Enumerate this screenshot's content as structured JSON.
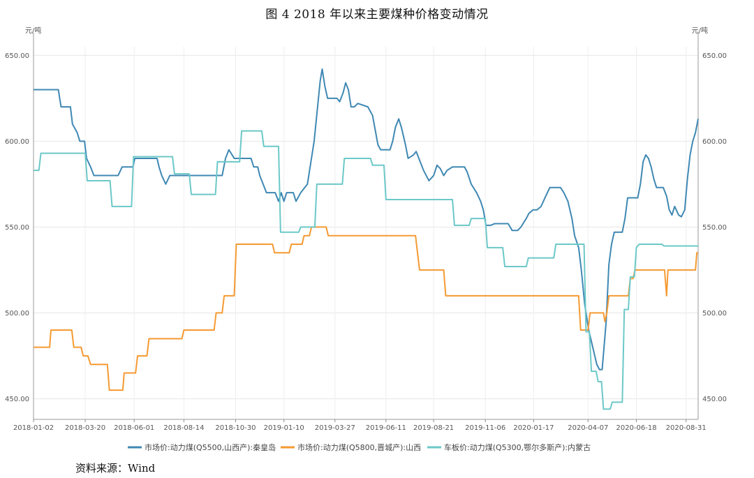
{
  "figure": {
    "title": "图 4   2018 年以来主要煤种价格变动情况",
    "source": "资料来源：Wind"
  },
  "chart_data": {
    "type": "line",
    "yunit_left": "元/吨",
    "yunit_right": "元/吨",
    "ylim": [
      438,
      655
    ],
    "yticks": [
      "650.00",
      "600.00",
      "550.00",
      "500.00",
      "450.00"
    ],
    "ytick_values": [
      650,
      600,
      550,
      500,
      450
    ],
    "xlim": [
      "2018-01-02",
      "2020-09-18"
    ],
    "xticks": [
      "2018-01-02",
      "2018-03-20",
      "2018-06-01",
      "2018-08-14",
      "2018-10-30",
      "2019-01-10",
      "2019-03-27",
      "2019-06-11",
      "2019-08-21",
      "2019-11-06",
      "2020-01-17",
      "2020-04-07",
      "2020-06-18",
      "2020-08-31"
    ],
    "grid": true,
    "legend_position": "bottom",
    "colors": {
      "qhd": "#3f88b3",
      "jc": "#f59a32",
      "nmg": "#6cc8c8"
    },
    "series": [
      {
        "key": "qhd",
        "name": "市场价:动力煤(Q5500,山西产):秦皇岛",
        "points": [
          [
            "2018-01-02",
            630
          ],
          [
            "2018-02-08",
            630
          ],
          [
            "2018-02-12",
            620
          ],
          [
            "2018-02-26",
            620
          ],
          [
            "2018-03-01",
            610
          ],
          [
            "2018-03-08",
            605
          ],
          [
            "2018-03-12",
            600
          ],
          [
            "2018-03-19",
            600
          ],
          [
            "2018-03-22",
            590
          ],
          [
            "2018-03-28",
            585
          ],
          [
            "2018-04-02",
            580
          ],
          [
            "2018-05-08",
            580
          ],
          [
            "2018-05-14",
            585
          ],
          [
            "2018-05-30",
            585
          ],
          [
            "2018-06-02",
            590
          ],
          [
            "2018-07-05",
            590
          ],
          [
            "2018-07-08",
            585
          ],
          [
            "2018-07-12",
            580
          ],
          [
            "2018-07-18",
            575
          ],
          [
            "2018-07-24",
            580
          ],
          [
            "2018-10-10",
            580
          ],
          [
            "2018-10-15",
            590
          ],
          [
            "2018-10-20",
            595
          ],
          [
            "2018-10-28",
            590
          ],
          [
            "2018-11-22",
            590
          ],
          [
            "2018-11-26",
            585
          ],
          [
            "2018-12-02",
            585
          ],
          [
            "2018-12-05",
            580
          ],
          [
            "2018-12-10",
            575
          ],
          [
            "2018-12-15",
            570
          ],
          [
            "2018-12-28",
            570
          ],
          [
            "2019-01-02",
            565
          ],
          [
            "2019-01-06",
            570
          ],
          [
            "2019-01-10",
            565
          ],
          [
            "2019-01-14",
            570
          ],
          [
            "2019-01-24",
            570
          ],
          [
            "2019-01-28",
            565
          ],
          [
            "2019-02-04",
            570
          ],
          [
            "2019-02-14",
            575
          ],
          [
            "2019-02-24",
            600
          ],
          [
            "2019-03-05",
            635
          ],
          [
            "2019-03-08",
            642
          ],
          [
            "2019-03-12",
            632
          ],
          [
            "2019-03-16",
            625
          ],
          [
            "2019-03-30",
            625
          ],
          [
            "2019-04-03",
            623
          ],
          [
            "2019-04-08",
            628
          ],
          [
            "2019-04-12",
            634
          ],
          [
            "2019-04-16",
            630
          ],
          [
            "2019-04-20",
            620
          ],
          [
            "2019-04-25",
            620
          ],
          [
            "2019-04-30",
            622
          ],
          [
            "2019-05-15",
            620
          ],
          [
            "2019-05-22",
            615
          ],
          [
            "2019-05-30",
            598
          ],
          [
            "2019-06-03",
            595
          ],
          [
            "2019-06-17",
            595
          ],
          [
            "2019-06-21",
            600
          ],
          [
            "2019-06-25",
            608
          ],
          [
            "2019-06-30",
            613
          ],
          [
            "2019-07-04",
            608
          ],
          [
            "2019-07-10",
            598
          ],
          [
            "2019-07-14",
            590
          ],
          [
            "2019-07-22",
            592
          ],
          [
            "2019-07-26",
            594
          ],
          [
            "2019-07-30",
            590
          ],
          [
            "2019-08-06",
            583
          ],
          [
            "2019-08-14",
            577
          ],
          [
            "2019-08-21",
            580
          ],
          [
            "2019-08-26",
            586
          ],
          [
            "2019-08-31",
            584
          ],
          [
            "2019-09-05",
            580
          ],
          [
            "2019-09-10",
            583
          ],
          [
            "2019-09-18",
            585
          ],
          [
            "2019-10-06",
            585
          ],
          [
            "2019-10-10",
            582
          ],
          [
            "2019-10-16",
            575
          ],
          [
            "2019-10-24",
            570
          ],
          [
            "2019-10-30",
            565
          ],
          [
            "2019-11-03",
            560
          ],
          [
            "2019-11-07",
            551
          ],
          [
            "2019-11-14",
            551
          ],
          [
            "2019-11-20",
            552
          ],
          [
            "2019-12-10",
            552
          ],
          [
            "2019-12-16",
            548
          ],
          [
            "2019-12-24",
            548
          ],
          [
            "2019-12-29",
            550
          ],
          [
            "2020-01-06",
            555
          ],
          [
            "2020-01-10",
            558
          ],
          [
            "2020-01-16",
            560
          ],
          [
            "2020-01-22",
            560
          ],
          [
            "2020-01-28",
            562
          ],
          [
            "2020-02-04",
            568
          ],
          [
            "2020-02-10",
            573
          ],
          [
            "2020-02-26",
            573
          ],
          [
            "2020-03-02",
            570
          ],
          [
            "2020-03-08",
            565
          ],
          [
            "2020-03-14",
            555
          ],
          [
            "2020-03-18",
            545
          ],
          [
            "2020-03-24",
            538
          ],
          [
            "2020-03-28",
            525
          ],
          [
            "2020-04-02",
            505
          ],
          [
            "2020-04-08",
            490
          ],
          [
            "2020-04-14",
            480
          ],
          [
            "2020-04-20",
            470
          ],
          [
            "2020-04-24",
            467
          ],
          [
            "2020-04-28",
            467
          ],
          [
            "2020-05-04",
            495
          ],
          [
            "2020-05-08",
            528
          ],
          [
            "2020-05-12",
            540
          ],
          [
            "2020-05-16",
            547
          ],
          [
            "2020-05-28",
            547
          ],
          [
            "2020-06-01",
            555
          ],
          [
            "2020-06-05",
            567
          ],
          [
            "2020-06-20",
            567
          ],
          [
            "2020-06-24",
            575
          ],
          [
            "2020-06-28",
            588
          ],
          [
            "2020-07-02",
            592
          ],
          [
            "2020-07-06",
            590
          ],
          [
            "2020-07-10",
            585
          ],
          [
            "2020-07-14",
            578
          ],
          [
            "2020-07-18",
            573
          ],
          [
            "2020-07-28",
            573
          ],
          [
            "2020-08-02",
            568
          ],
          [
            "2020-08-06",
            560
          ],
          [
            "2020-08-10",
            557
          ],
          [
            "2020-08-14",
            562
          ],
          [
            "2020-08-20",
            557
          ],
          [
            "2020-08-24",
            556
          ],
          [
            "2020-08-29",
            560
          ],
          [
            "2020-09-02",
            578
          ],
          [
            "2020-09-06",
            592
          ],
          [
            "2020-09-10",
            600
          ],
          [
            "2020-09-14",
            605
          ],
          [
            "2020-09-18",
            613
          ]
        ]
      },
      {
        "key": "jc",
        "name": "市场价:动力煤(Q5800,晋城产):山西",
        "points": [
          [
            "2018-01-02",
            480
          ],
          [
            "2018-01-26",
            480
          ],
          [
            "2018-01-28",
            490
          ],
          [
            "2018-02-28",
            490
          ],
          [
            "2018-03-03",
            480
          ],
          [
            "2018-03-14",
            480
          ],
          [
            "2018-03-17",
            475
          ],
          [
            "2018-03-24",
            475
          ],
          [
            "2018-03-28",
            470
          ],
          [
            "2018-04-22",
            470
          ],
          [
            "2018-04-25",
            455
          ],
          [
            "2018-05-15",
            455
          ],
          [
            "2018-05-17",
            465
          ],
          [
            "2018-06-03",
            465
          ],
          [
            "2018-06-06",
            475
          ],
          [
            "2018-06-20",
            475
          ],
          [
            "2018-06-23",
            485
          ],
          [
            "2018-08-11",
            485
          ],
          [
            "2018-08-14",
            490
          ],
          [
            "2018-09-28",
            490
          ],
          [
            "2018-10-01",
            500
          ],
          [
            "2018-10-10",
            500
          ],
          [
            "2018-10-13",
            510
          ],
          [
            "2018-10-28",
            510
          ],
          [
            "2018-10-31",
            540
          ],
          [
            "2018-12-24",
            540
          ],
          [
            "2018-12-27",
            535
          ],
          [
            "2019-01-18",
            535
          ],
          [
            "2019-01-21",
            540
          ],
          [
            "2019-02-06",
            540
          ],
          [
            "2019-02-09",
            545
          ],
          [
            "2019-02-17",
            545
          ],
          [
            "2019-02-20",
            550
          ],
          [
            "2019-03-14",
            550
          ],
          [
            "2019-03-17",
            545
          ],
          [
            "2019-07-25",
            545
          ],
          [
            "2019-07-28",
            535
          ],
          [
            "2019-07-31",
            525
          ],
          [
            "2019-08-05",
            525
          ],
          [
            "2019-09-05",
            525
          ],
          [
            "2019-09-08",
            510
          ],
          [
            "2020-03-24",
            510
          ],
          [
            "2020-03-27",
            490
          ],
          [
            "2020-04-07",
            490
          ],
          [
            "2020-04-10",
            500
          ],
          [
            "2020-04-30",
            500
          ],
          [
            "2020-05-02",
            495
          ],
          [
            "2020-05-05",
            500
          ],
          [
            "2020-05-08",
            510
          ],
          [
            "2020-06-06",
            510
          ],
          [
            "2020-06-09",
            520
          ],
          [
            "2020-06-13",
            520
          ],
          [
            "2020-06-16",
            525
          ],
          [
            "2020-07-30",
            525
          ],
          [
            "2020-08-02",
            510
          ],
          [
            "2020-08-04",
            525
          ],
          [
            "2020-09-14",
            525
          ],
          [
            "2020-09-16",
            535
          ],
          [
            "2020-09-18",
            535
          ]
        ]
      },
      {
        "key": "nmg",
        "name": "车板价:动力煤(Q5300,鄂尔多斯产):内蒙古",
        "points": [
          [
            "2018-01-02",
            583
          ],
          [
            "2018-01-10",
            583
          ],
          [
            "2018-01-13",
            593
          ],
          [
            "2018-03-20",
            593
          ],
          [
            "2018-03-23",
            577
          ],
          [
            "2018-04-26",
            577
          ],
          [
            "2018-04-29",
            562
          ],
          [
            "2018-05-28",
            562
          ],
          [
            "2018-05-31",
            591
          ],
          [
            "2018-07-28",
            591
          ],
          [
            "2018-07-31",
            581
          ],
          [
            "2018-08-22",
            581
          ],
          [
            "2018-08-25",
            569
          ],
          [
            "2018-09-30",
            569
          ],
          [
            "2018-10-03",
            588
          ],
          [
            "2018-11-05",
            588
          ],
          [
            "2018-11-08",
            606
          ],
          [
            "2018-12-08",
            606
          ],
          [
            "2018-12-11",
            597
          ],
          [
            "2019-01-02",
            597
          ],
          [
            "2019-01-05",
            547
          ],
          [
            "2019-02-01",
            547
          ],
          [
            "2019-02-04",
            550
          ],
          [
            "2019-02-25",
            550
          ],
          [
            "2019-02-28",
            575
          ],
          [
            "2019-04-07",
            575
          ],
          [
            "2019-04-10",
            590
          ],
          [
            "2019-05-19",
            590
          ],
          [
            "2019-05-22",
            586
          ],
          [
            "2019-06-08",
            586
          ],
          [
            "2019-06-11",
            566
          ],
          [
            "2019-09-18",
            566
          ],
          [
            "2019-09-21",
            551
          ],
          [
            "2019-10-13",
            551
          ],
          [
            "2019-10-16",
            555
          ],
          [
            "2019-11-06",
            555
          ],
          [
            "2019-11-09",
            538
          ],
          [
            "2019-12-02",
            538
          ],
          [
            "2019-12-05",
            527
          ],
          [
            "2020-01-06",
            527
          ],
          [
            "2020-01-09",
            532
          ],
          [
            "2020-02-16",
            532
          ],
          [
            "2020-02-19",
            540
          ],
          [
            "2020-04-01",
            540
          ],
          [
            "2020-04-04",
            489
          ],
          [
            "2020-04-09",
            489
          ],
          [
            "2020-04-12",
            466
          ],
          [
            "2020-04-19",
            466
          ],
          [
            "2020-04-22",
            460
          ],
          [
            "2020-04-27",
            460
          ],
          [
            "2020-04-30",
            444
          ],
          [
            "2020-05-10",
            444
          ],
          [
            "2020-05-13",
            448
          ],
          [
            "2020-05-28",
            448
          ],
          [
            "2020-05-31",
            502
          ],
          [
            "2020-06-06",
            502
          ],
          [
            "2020-06-09",
            521
          ],
          [
            "2020-06-15",
            521
          ],
          [
            "2020-06-18",
            538
          ],
          [
            "2020-06-22",
            540
          ],
          [
            "2020-07-26",
            540
          ],
          [
            "2020-07-29",
            539
          ],
          [
            "2020-09-18",
            539
          ]
        ]
      }
    ]
  }
}
